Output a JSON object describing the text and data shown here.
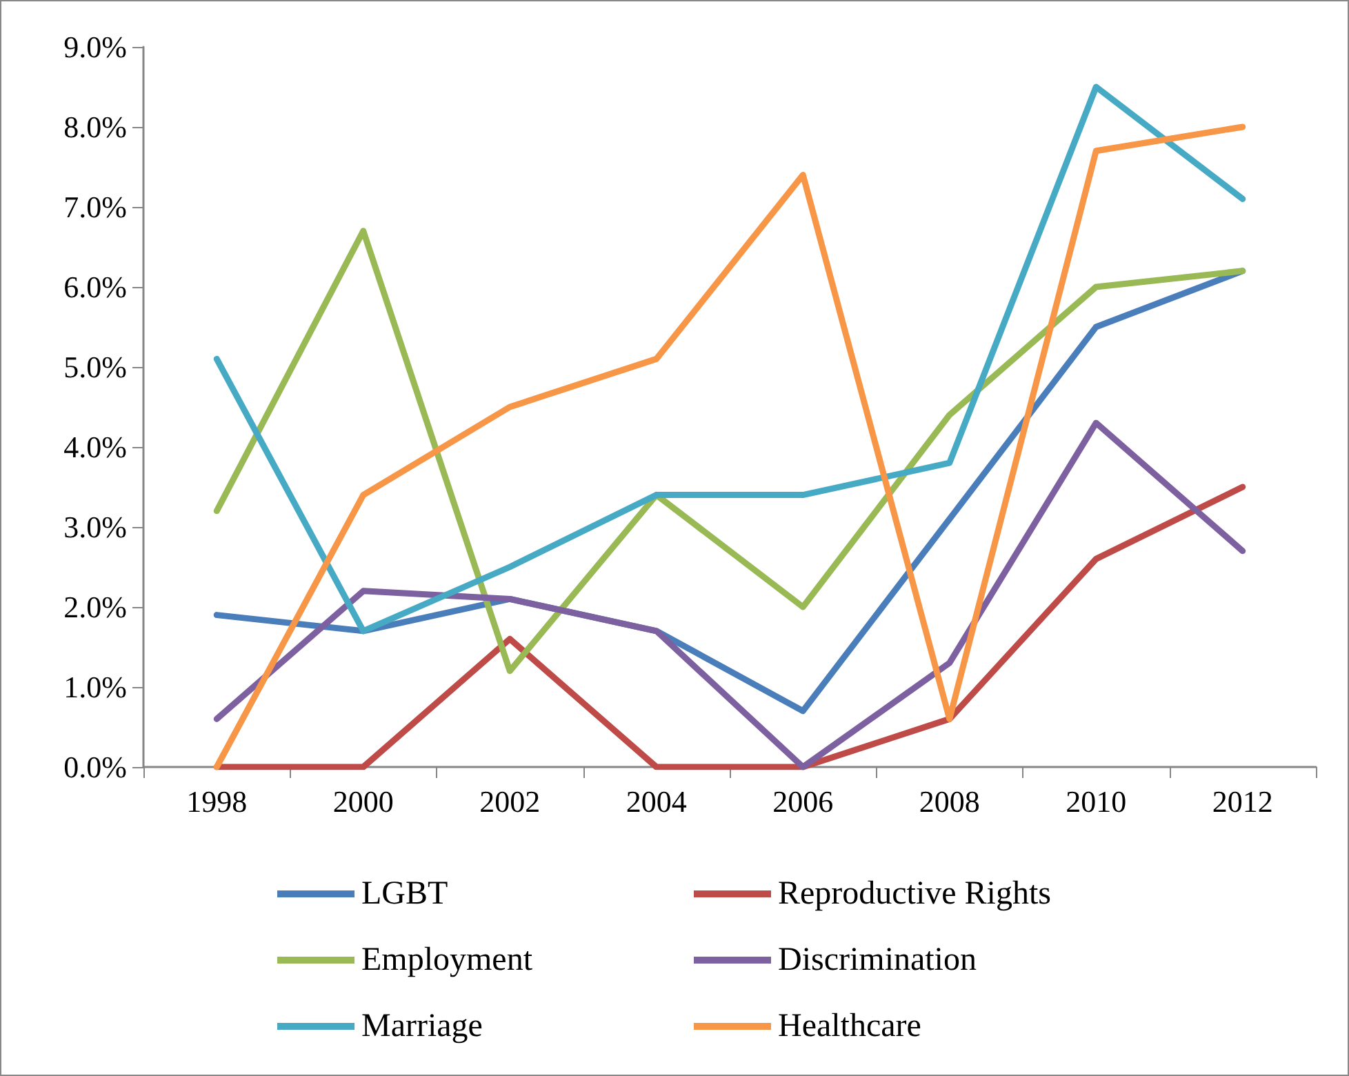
{
  "chart_data": {
    "type": "line",
    "categories": [
      "1998",
      "2000",
      "2002",
      "2004",
      "2006",
      "2008",
      "2010",
      "2012"
    ],
    "series": [
      {
        "name": "LGBT",
        "color": "#4a7ebb",
        "values": [
          1.9,
          1.7,
          2.1,
          1.7,
          0.7,
          3.1,
          5.5,
          6.2
        ]
      },
      {
        "name": "Reproductive Rights",
        "color": "#be4b48",
        "values": [
          0,
          0,
          1.6,
          0,
          0,
          0.6,
          2.6,
          3.5
        ]
      },
      {
        "name": "Employment",
        "color": "#98b954",
        "values": [
          3.2,
          6.7,
          1.2,
          3.4,
          2.0,
          4.4,
          6.0,
          6.2
        ]
      },
      {
        "name": "Discrimination",
        "color": "#7d60a0",
        "values": [
          0.6,
          2.2,
          2.1,
          1.7,
          0,
          1.3,
          4.3,
          2.7
        ]
      },
      {
        "name": "Marriage",
        "color": "#46aac5",
        "values": [
          5.1,
          1.7,
          2.5,
          3.4,
          3.4,
          3.8,
          8.5,
          7.1
        ]
      },
      {
        "name": "Healthcare",
        "color": "#f79646",
        "values": [
          0,
          3.4,
          4.5,
          5.1,
          7.4,
          0.6,
          7.7,
          8.0
        ]
      }
    ],
    "ylim": [
      0,
      9
    ],
    "yticks": [
      {
        "value": 0,
        "label": "0.0%"
      },
      {
        "value": 1,
        "label": "1.0%"
      },
      {
        "value": 2,
        "label": "2.0%"
      },
      {
        "value": 3,
        "label": "3.0%"
      },
      {
        "value": 4,
        "label": "4.0%"
      },
      {
        "value": 5,
        "label": "5.0%"
      },
      {
        "value": 6,
        "label": "6.0%"
      },
      {
        "value": 7,
        "label": "7.0%"
      },
      {
        "value": 8,
        "label": "8.0%"
      },
      {
        "value": 9,
        "label": "9.0%"
      }
    ],
    "grid": false,
    "legend": "bottom",
    "marker": "none",
    "line_style": "solid"
  }
}
